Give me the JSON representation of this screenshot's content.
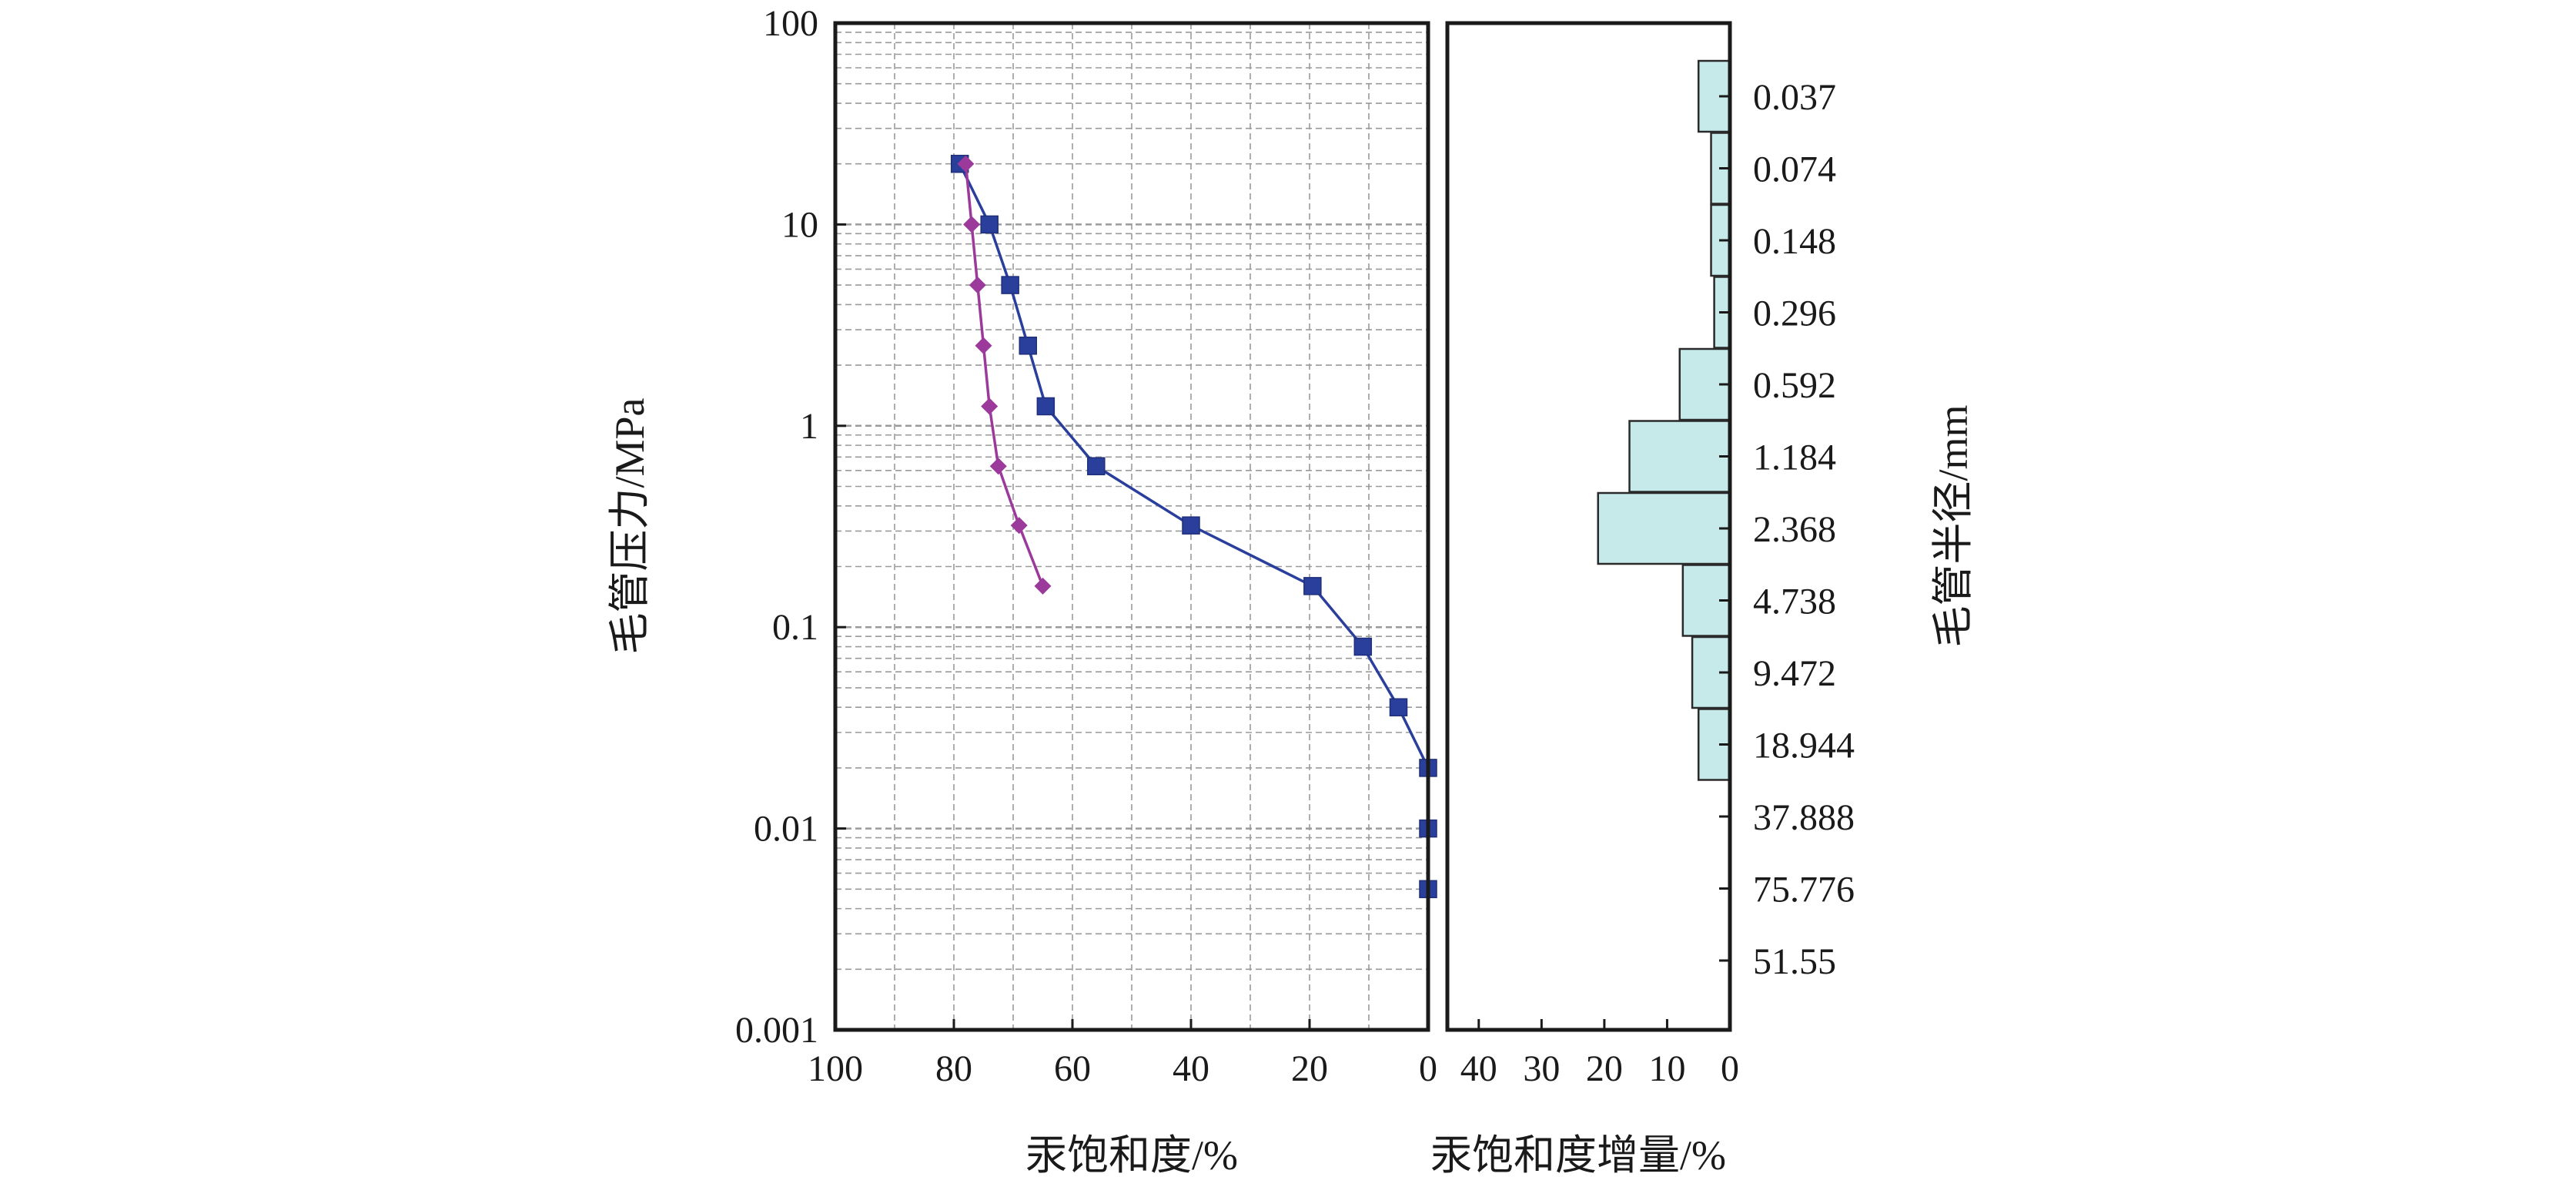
{
  "chart_data": [
    {
      "id": "saturation-curve",
      "type": "line",
      "xlabel": "汞饱和度/%",
      "ylabel": "毛管压力/MPa",
      "xlim": [
        100,
        0
      ],
      "x_reversed": true,
      "ylim": [
        0.001,
        100
      ],
      "y_scale": "log",
      "grid": true,
      "x_ticks": [
        "100",
        "80",
        "60",
        "40",
        "20",
        "0"
      ],
      "y_ticks": [
        "0.001",
        "0.01",
        "0.1",
        "1",
        "10",
        "100"
      ],
      "series": [
        {
          "marker": "square",
          "color": "#2a3f9c",
          "points": [
            [
              79,
              20
            ],
            [
              74,
              10
            ],
            [
              70.5,
              5
            ],
            [
              67.5,
              2.5
            ],
            [
              64.5,
              1.25
            ],
            [
              56,
              0.63
            ],
            [
              40,
              0.32
            ],
            [
              19.5,
              0.16
            ],
            [
              11,
              0.08
            ],
            [
              5,
              0.04
            ],
            [
              0,
              0.02
            ],
            [
              0,
              0.01
            ],
            [
              0,
              0.005
            ]
          ]
        },
        {
          "marker": "diamond",
          "color": "#9b3a9b",
          "points": [
            [
              78,
              20
            ],
            [
              77,
              10
            ],
            [
              76,
              5
            ],
            [
              75,
              2.5
            ],
            [
              74,
              1.25
            ],
            [
              72.5,
              0.63
            ],
            [
              69,
              0.32
            ],
            [
              65,
              0.16
            ]
          ]
        }
      ]
    },
    {
      "id": "saturation-increment",
      "type": "bar",
      "orientation": "horizontal",
      "xlabel": "汞饱和度增量/%",
      "ylabel": "毛管半径/mm",
      "xlim": [
        45,
        0
      ],
      "x_reversed": true,
      "x_ticks": [
        "40",
        "30",
        "20",
        "10",
        "0"
      ],
      "bar_color": "#c6eaea",
      "bar_edge": "#2a2a2a",
      "categories": [
        "0.037",
        "0.074",
        "0.148",
        "0.296",
        "0.592",
        "1.184",
        "2.368",
        "4.738",
        "9.472",
        "18.944",
        "37.888",
        "75.776",
        "51.55"
      ],
      "values": [
        5,
        3,
        3,
        2.5,
        8,
        16,
        21,
        7.5,
        6,
        5,
        0,
        0,
        0
      ]
    }
  ]
}
